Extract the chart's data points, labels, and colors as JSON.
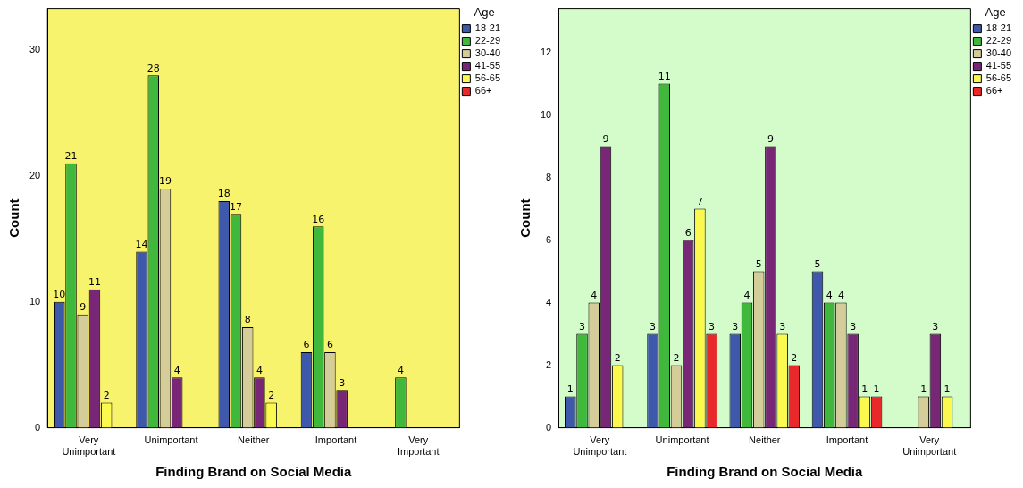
{
  "chart_data": [
    {
      "type": "bar",
      "xlabel": "Finding Brand on Social Media",
      "ylabel": "Count",
      "legend_title": "Age",
      "legend": "right",
      "categories": [
        "Very Unimportant",
        "Unimportant",
        "Neither",
        "Important",
        "Very Important"
      ],
      "series": [
        {
          "name": "18-21",
          "color": "#3e58ac",
          "values": [
            10,
            14,
            18,
            6,
            null
          ]
        },
        {
          "name": "22-29",
          "color": "#3fb83c",
          "values": [
            21,
            28,
            17,
            16,
            4
          ]
        },
        {
          "name": "30-40",
          "color": "#d4cc99",
          "values": [
            9,
            19,
            8,
            6,
            null
          ]
        },
        {
          "name": "41-55",
          "color": "#782777",
          "values": [
            11,
            4,
            4,
            3,
            null
          ]
        },
        {
          "name": "56-65",
          "color": "#fbf84e",
          "values": [
            2,
            null,
            2,
            null,
            null
          ]
        },
        {
          "name": "66+",
          "color": "#e9282a",
          "values": [
            null,
            null,
            null,
            null,
            null
          ]
        }
      ],
      "ylim": [
        0,
        33.3
      ],
      "yticks": [
        0,
        10,
        20,
        30
      ],
      "grid": false,
      "data_labels": true
    },
    {
      "type": "bar",
      "xlabel": "Finding Brand on Social Media",
      "ylabel": "Count",
      "legend_title": "Age",
      "legend": "right",
      "categories": [
        "Very Unimportant",
        "Unimportant",
        "Neither",
        "Important",
        "Very Unimportant"
      ],
      "series": [
        {
          "name": "18-21",
          "color": "#3e58ac",
          "values": [
            1,
            3,
            3,
            5,
            null
          ]
        },
        {
          "name": "22-29",
          "color": "#3fb83c",
          "values": [
            3,
            11,
            4,
            4,
            null
          ]
        },
        {
          "name": "30-40",
          "color": "#d4cc99",
          "values": [
            4,
            2,
            5,
            4,
            1
          ]
        },
        {
          "name": "41-55",
          "color": "#782777",
          "values": [
            9,
            6,
            9,
            3,
            3
          ]
        },
        {
          "name": "56-65",
          "color": "#fbf84e",
          "values": [
            2,
            7,
            3,
            1,
            1
          ]
        },
        {
          "name": "66+",
          "color": "#e9282a",
          "values": [
            null,
            3,
            2,
            1,
            null
          ]
        }
      ],
      "ylim": [
        0,
        13.4
      ],
      "yticks": [
        0,
        2,
        4,
        6,
        8,
        10,
        12
      ],
      "grid": false,
      "data_labels": true
    }
  ]
}
